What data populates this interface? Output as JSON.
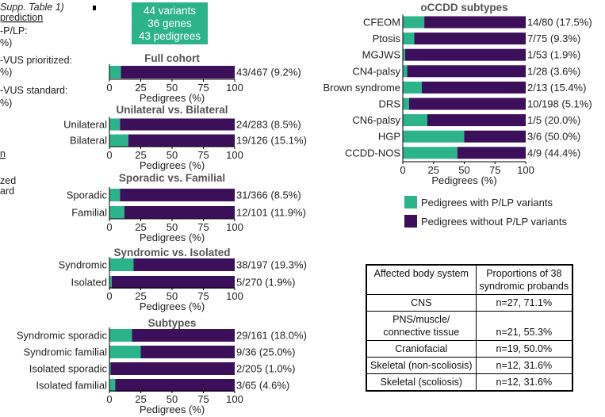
{
  "left_panel": {
    "lines": [
      "Supp. Table 1)",
      "prediction",
      "-P/LP:",
      "%)",
      "-VUS prioritized:",
      "%)",
      "-VUS standard:",
      "%)",
      "n",
      "zed",
      "ard"
    ]
  },
  "badge": {
    "lines": [
      "44 variants",
      "36 genes",
      "43 pedigrees"
    ],
    "color": "#2db38a"
  },
  "colors": {
    "with": "#2db38a",
    "without": "#3b0f5a"
  },
  "legend": {
    "with_label": "Pedigrees with P/LP variants",
    "without_label": "Pedigrees without P/LP variants"
  },
  "chart_data": [
    {
      "type": "bar",
      "orientation": "horizontal",
      "stacked": true,
      "title": "Full cohort",
      "categories": [
        ""
      ],
      "series": [
        {
          "name": "Pedigrees with P/LP variants",
          "values": [
            9.2
          ]
        },
        {
          "name": "Pedigrees without P/LP variants",
          "values": [
            90.8
          ]
        }
      ],
      "data_labels": [
        "43/467 (9.2%)"
      ],
      "xlabel": "Pedigrees (%)",
      "xlim": [
        0,
        100
      ],
      "xticks": [
        "0",
        "25",
        "50",
        "75",
        "100"
      ]
    },
    {
      "type": "bar",
      "orientation": "horizontal",
      "stacked": true,
      "title": "Unilateral vs. Bilateral",
      "categories": [
        "Unilateral",
        "Bilateral"
      ],
      "series": [
        {
          "name": "Pedigrees with P/LP variants",
          "values": [
            8.5,
            15.1
          ]
        },
        {
          "name": "Pedigrees without P/LP variants",
          "values": [
            91.5,
            84.9
          ]
        }
      ],
      "data_labels": [
        "24/283 (8.5%)",
        "19/126 (15.1%)"
      ],
      "xlabel": "Pedigrees (%)",
      "xlim": [
        0,
        100
      ],
      "xticks": [
        "0",
        "25",
        "50",
        "75",
        "100"
      ]
    },
    {
      "type": "bar",
      "orientation": "horizontal",
      "stacked": true,
      "title": "Sporadic vs. Familial",
      "categories": [
        "Sporadic",
        "Familial"
      ],
      "series": [
        {
          "name": "Pedigrees with P/LP variants",
          "values": [
            8.5,
            11.9
          ]
        },
        {
          "name": "Pedigrees without P/LP variants",
          "values": [
            91.5,
            88.1
          ]
        }
      ],
      "data_labels": [
        "31/366 (8.5%)",
        "12/101 (11.9%)"
      ],
      "xlabel": "Pedigrees (%)",
      "xlim": [
        0,
        100
      ],
      "xticks": [
        "0",
        "25",
        "50",
        "75",
        "100"
      ]
    },
    {
      "type": "bar",
      "orientation": "horizontal",
      "stacked": true,
      "title": "Syndromic vs. Isolated",
      "categories": [
        "Syndromic",
        "Isolated"
      ],
      "series": [
        {
          "name": "Pedigrees with P/LP variants",
          "values": [
            19.3,
            1.9
          ]
        },
        {
          "name": "Pedigrees without P/LP variants",
          "values": [
            80.7,
            98.1
          ]
        }
      ],
      "data_labels": [
        "38/197 (19.3%)",
        "5/270 (1.9%)"
      ],
      "xlabel": "Pedigrees (%)",
      "xlim": [
        0,
        100
      ],
      "xticks": [
        "0",
        "25",
        "50",
        "75",
        "100"
      ]
    },
    {
      "type": "bar",
      "orientation": "horizontal",
      "stacked": true,
      "title": "Subtypes",
      "categories": [
        "Syndromic sporadic",
        "Syndromic familial",
        "Isolated sporadic",
        "Isolated familial"
      ],
      "series": [
        {
          "name": "Pedigrees with P/LP variants",
          "values": [
            18.0,
            25.0,
            1.0,
            4.6
          ]
        },
        {
          "name": "Pedigrees without P/LP variants",
          "values": [
            82.0,
            75.0,
            99.0,
            95.4
          ]
        }
      ],
      "data_labels": [
        "29/161 (18.0%)",
        "9/36 (25.0%)",
        "2/205 (1.0%)",
        "3/65 (4.6%)"
      ],
      "xlabel": "Pedigrees (%)",
      "xlim": [
        0,
        100
      ],
      "xticks": [
        "0",
        "25",
        "50",
        "75",
        "100"
      ]
    },
    {
      "type": "bar",
      "orientation": "horizontal",
      "stacked": true,
      "title": "oCCDD subtypes",
      "categories": [
        "CFEOM",
        "Ptosis",
        "MGJWS",
        "CN4-palsy",
        "Brown syndrome",
        "DRS",
        "CN6-palsy",
        "HGP",
        "CCDD-NOS"
      ],
      "series": [
        {
          "name": "Pedigrees with P/LP variants",
          "values": [
            17.5,
            9.3,
            1.9,
            3.6,
            15.4,
            5.1,
            20.0,
            50.0,
            44.4
          ]
        },
        {
          "name": "Pedigrees without P/LP variants",
          "values": [
            82.5,
            90.7,
            98.1,
            96.4,
            84.6,
            94.9,
            80.0,
            50.0,
            55.6
          ]
        }
      ],
      "data_labels": [
        "14/80 (17.5%)",
        "7/75 (9.3%)",
        "1/53 (1.9%)",
        "1/28 (3.6%)",
        "2/13 (15.4%)",
        "10/198 (5.1%)",
        "1/5 (20.0%)",
        "3/6 (50.0%)",
        "4/9 (44.4%)"
      ],
      "xlabel": "Pedigrees (%)",
      "xlim": [
        0,
        100
      ],
      "xticks": [
        "0",
        "25",
        "50",
        "75",
        "100"
      ]
    },
    {
      "type": "table",
      "columns": [
        "Affected body system",
        "Proportions of 38 syndromic probands"
      ],
      "header_lines": [
        [
          "Affected body system"
        ],
        [
          "Proportions of 38",
          "syndromic probands"
        ]
      ],
      "rows": [
        {
          "system": [
            "CNS"
          ],
          "value": "n=27, 71.1%"
        },
        {
          "system": [
            "PNS/muscle/",
            "connective tissue"
          ],
          "value": "n=21, 55.3%"
        },
        {
          "system": [
            "Craniofacial"
          ],
          "value": "n=19, 50.0%"
        },
        {
          "system": [
            "Skeletal (non-scoliosis)"
          ],
          "value": "n=12, 31.6%"
        },
        {
          "system": [
            "Skeletal (scoliosis)"
          ],
          "value": "n=12, 31.6%"
        }
      ]
    }
  ]
}
